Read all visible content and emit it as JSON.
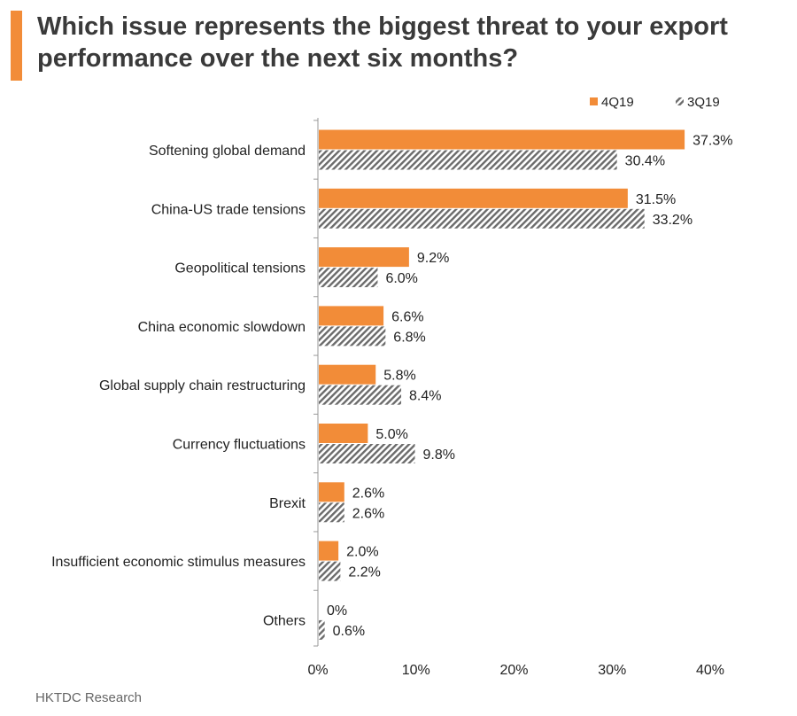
{
  "title": "Which issue represents the biggest threat to your export performance over the next six months?",
  "source": "HKTDC Research",
  "colors": {
    "accent": "#F28C38",
    "series_4q19": "#F28C38",
    "series_3q19_stripe": "#6b6b6b",
    "axis": "#9a9a9a"
  },
  "chart_data": {
    "type": "bar",
    "orientation": "horizontal",
    "categories": [
      "Softening global demand",
      "China-US trade tensions",
      "Geopolitical tensions",
      "China economic slowdown",
      "Global supply chain restructuring",
      "Currency fluctuations",
      "Brexit",
      "Insufficient economic stimulus measures",
      "Others"
    ],
    "series": [
      {
        "name": "4Q19",
        "values": [
          37.3,
          31.5,
          9.2,
          6.6,
          5.8,
          5.0,
          2.6,
          2.0,
          0
        ],
        "labels": [
          "37.3%",
          "31.5%",
          "9.2%",
          "6.6%",
          "5.8%",
          "5.0%",
          "2.6%",
          "2.0%",
          "0%"
        ]
      },
      {
        "name": "3Q19",
        "values": [
          30.4,
          33.2,
          6.0,
          6.8,
          8.4,
          9.8,
          2.6,
          2.2,
          0.6
        ],
        "labels": [
          "30.4%",
          "33.2%",
          "6.0%",
          "6.8%",
          "8.4%",
          "9.8%",
          "2.6%",
          "2.2%",
          "0.6%"
        ]
      }
    ],
    "xlim": [
      0,
      40
    ],
    "xticks": [
      0,
      10,
      20,
      30,
      40
    ],
    "xtick_labels": [
      "0%",
      "10%",
      "20%",
      "30%",
      "40%"
    ],
    "legend_position": "top-right",
    "grid": false
  }
}
